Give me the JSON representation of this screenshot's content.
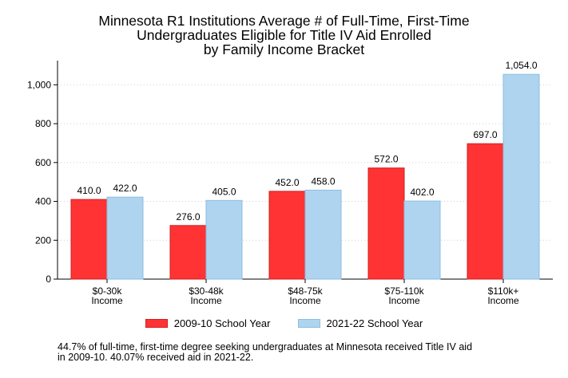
{
  "chart_data": {
    "type": "bar",
    "title_lines": [
      "Minnesota R1 Institutions Average # of Full-Time, First-Time",
      "Undergraduates Eligible for Title IV Aid Enrolled",
      "by Family Income Bracket"
    ],
    "categories": [
      [
        "$0-30k",
        "Income"
      ],
      [
        "$30-48k",
        "Income"
      ],
      [
        "$48-75k",
        "Income"
      ],
      [
        "$75-110k",
        "Income"
      ],
      [
        "$110k+",
        "Income"
      ]
    ],
    "series": [
      {
        "name": "2009-10 School Year",
        "values": [
          410.0,
          276.0,
          452.0,
          572.0,
          697.0
        ],
        "color": "#ff3333",
        "edge": "#cc2222"
      },
      {
        "name": "2021-22 School Year",
        "values": [
          422.0,
          405.0,
          458.0,
          402.0,
          1054.0
        ],
        "color": "#aed4f0",
        "edge": "#8fbde0"
      }
    ],
    "data_labels": [
      [
        "410.0",
        "276.0",
        "452.0",
        "572.0",
        "697.0"
      ],
      [
        "422.0",
        "405.0",
        "458.0",
        "402.0",
        "1,054.0"
      ]
    ],
    "yticks": [
      0,
      200,
      400,
      600,
      800,
      1000
    ],
    "ytick_labels": [
      "0",
      "200",
      "400",
      "600",
      "800",
      "1,000"
    ],
    "ylim": [
      0,
      1100
    ],
    "grid": true,
    "legend_position": "bottom"
  },
  "footnote_lines": [
    "44.7% of full-time, first-time degree seeking undergraduates at Minnesota received Title IV aid",
    "in 2009-10. 40.07% received aid in 2021-22."
  ]
}
